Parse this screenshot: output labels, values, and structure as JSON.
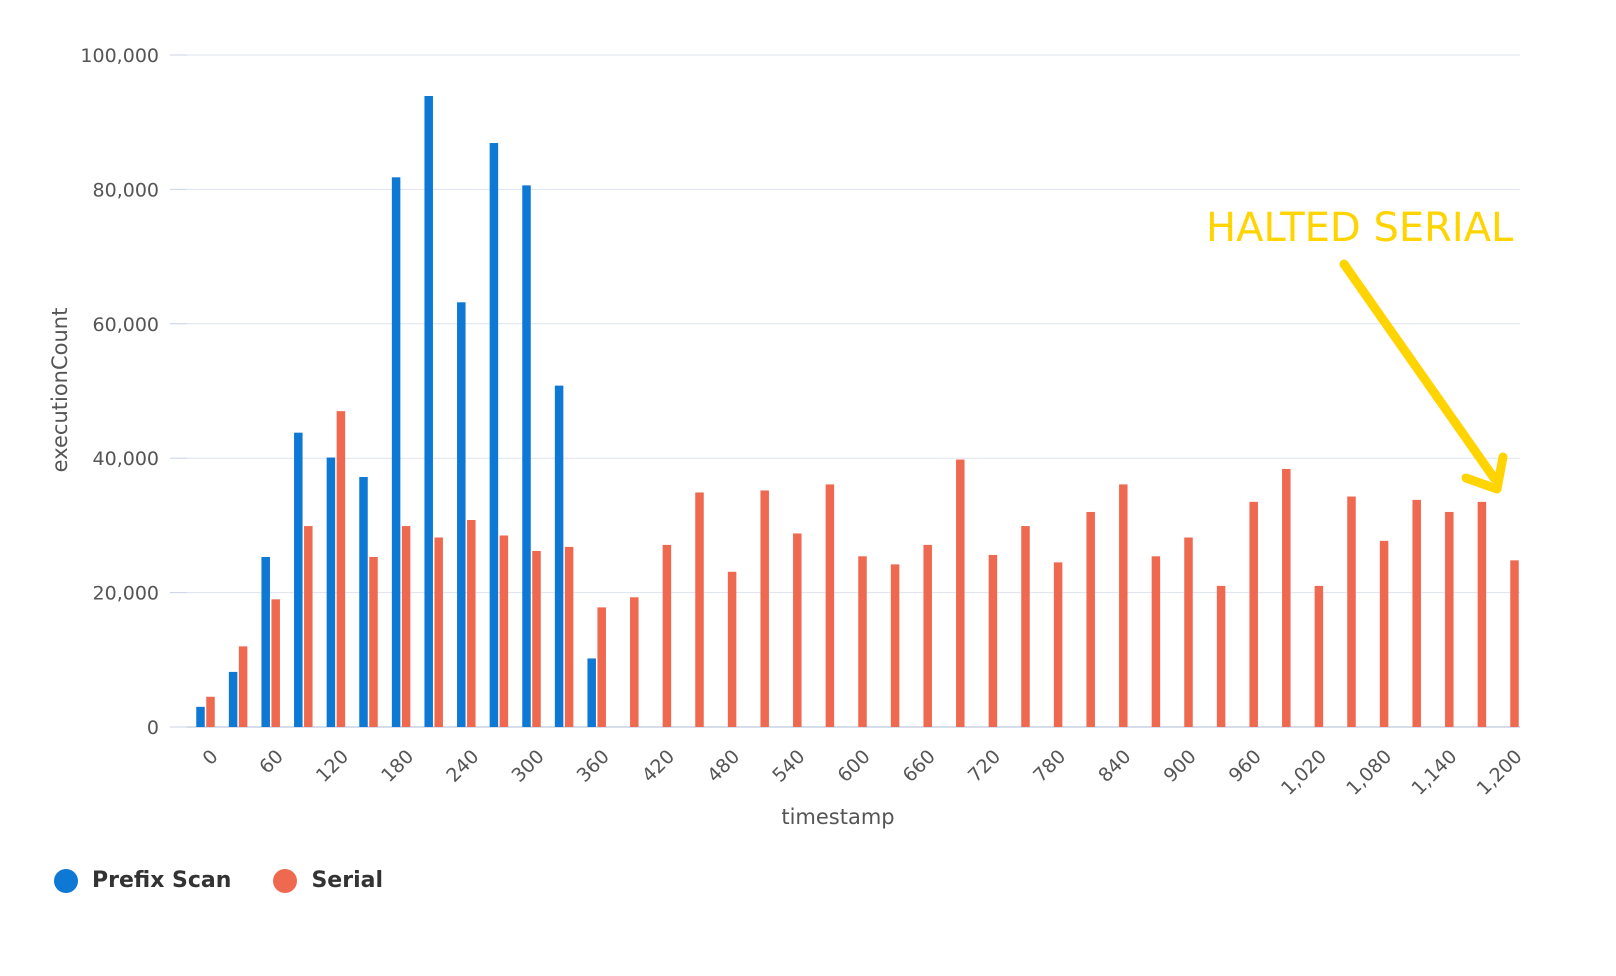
{
  "chart_data": {
    "type": "bar",
    "xlabel": "timestamp",
    "ylabel": "executionCount",
    "ylim": [
      0,
      100000
    ],
    "y_ticks": [
      0,
      20000,
      40000,
      60000,
      80000,
      100000
    ],
    "y_tick_labels": [
      "0",
      "20,000",
      "40,000",
      "60,000",
      "80,000",
      "100,000"
    ],
    "x_tick_labels": [
      "0",
      "60",
      "120",
      "180",
      "240",
      "300",
      "360",
      "420",
      "480",
      "540",
      "600",
      "660",
      "720",
      "780",
      "840",
      "900",
      "960",
      "1,020",
      "1,080",
      "1,140",
      "1,200"
    ],
    "categories": [
      0,
      30,
      60,
      90,
      120,
      150,
      180,
      210,
      240,
      270,
      300,
      330,
      360,
      390,
      420,
      450,
      480,
      510,
      540,
      570,
      600,
      630,
      660,
      690,
      720,
      750,
      780,
      810,
      840,
      870,
      900,
      930,
      960,
      990,
      1020,
      1050,
      1080,
      1110,
      1140,
      1170,
      1200
    ],
    "series": [
      {
        "name": "Prefix Scan",
        "color": "#0e78d5",
        "values": [
          3000,
          8200,
          25300,
          43800,
          40100,
          37200,
          81800,
          93900,
          63200,
          86900,
          80600,
          50800,
          10200,
          null,
          null,
          null,
          null,
          null,
          null,
          null,
          null,
          null,
          null,
          null,
          null,
          null,
          null,
          null,
          null,
          null,
          null,
          null,
          null,
          null,
          null,
          null,
          null,
          null,
          null,
          null,
          null
        ]
      },
      {
        "name": "Serial",
        "color": "#ef6950",
        "values": [
          4500,
          12000,
          19000,
          29900,
          47000,
          25300,
          29900,
          28200,
          30800,
          28500,
          26200,
          26800,
          17800,
          19300,
          27100,
          34900,
          23100,
          35200,
          28800,
          36100,
          25400,
          24200,
          27100,
          39800,
          25600,
          29900,
          24500,
          32000,
          36100,
          25400,
          28200,
          21000,
          33500,
          38400,
          21000,
          34300,
          27700,
          33800,
          32000,
          33500,
          24800
        ]
      }
    ],
    "legend_position": "bottom-left",
    "grid": true,
    "annotation": {
      "text": "HALTED SERIAL",
      "color": "#ffd400"
    }
  }
}
